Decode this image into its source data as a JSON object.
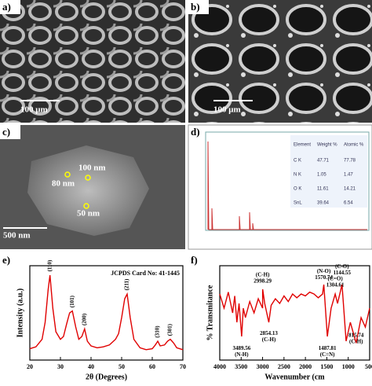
{
  "panels": {
    "a": {
      "label": "a)",
      "scale_bar": "100 μm"
    },
    "b": {
      "label": "b)",
      "scale_bar": "100 μm"
    },
    "c": {
      "label": "c)",
      "scale_bar": "500 nm",
      "annotations": [
        "100 nm",
        "80 nm",
        "50 nm"
      ]
    },
    "d": {
      "label": "d)",
      "table": {
        "header": [
          "Element",
          "Weight %",
          "Atomic %"
        ],
        "rows": [
          [
            "C K",
            "47.71",
            "77.78"
          ],
          [
            "N K",
            "1.05",
            "1.47"
          ],
          [
            "O K",
            "11.61",
            "14.21"
          ],
          [
            "SnL",
            "39.64",
            "6.54"
          ]
        ]
      }
    },
    "e": {
      "label": "e)"
    },
    "f": {
      "label": "f)"
    }
  },
  "chart_data": [
    {
      "type": "line",
      "color": "#e00000",
      "xlabel": "2θ (Degrees)",
      "ylabel": "Intensity (a.u.)",
      "annotation": "JCPDS Card No: 41-1445",
      "x": [
        20,
        22,
        24,
        25,
        26,
        26.6,
        27.5,
        28.5,
        30,
        31,
        32,
        33,
        33.9,
        35,
        36,
        37,
        37.9,
        38.8,
        40,
        42,
        44,
        46,
        48,
        49,
        50,
        51,
        51.8,
        52.8,
        54,
        56,
        58,
        60,
        61,
        61.8,
        62.6,
        64,
        65,
        65.9,
        67,
        68,
        70
      ],
      "values": [
        12,
        14,
        22,
        40,
        75,
        90,
        55,
        30,
        22,
        25,
        38,
        50,
        52,
        35,
        22,
        25,
        33,
        20,
        15,
        13,
        14,
        16,
        22,
        28,
        45,
        65,
        70,
        45,
        22,
        13,
        11,
        12,
        16,
        20,
        15,
        16,
        20,
        22,
        18,
        13,
        11
      ],
      "xlim": [
        20,
        70
      ],
      "xticks": [
        20,
        30,
        40,
        50,
        60,
        70
      ],
      "ylim": [
        0,
        100
      ],
      "peaks": [
        {
          "text": "(110)",
          "x": 26.6,
          "y": 90
        },
        {
          "text": "(101)",
          "x": 33.9,
          "y": 52
        },
        {
          "text": "(200)",
          "x": 37.9,
          "y": 33
        },
        {
          "text": "(211)",
          "x": 51.8,
          "y": 70
        },
        {
          "text": "(310)",
          "x": 61.8,
          "y": 20
        },
        {
          "text": "(301)",
          "x": 65.9,
          "y": 22
        }
      ]
    },
    {
      "type": "line",
      "color": "#e00000",
      "xlabel": "Wavenumber (cm",
      "ylabel": "% Transmitance",
      "x": [
        4000,
        3900,
        3800,
        3700,
        3650,
        3600,
        3550,
        3489.56,
        3450,
        3400,
        3300,
        3200,
        3100,
        3000,
        2998.29,
        2950,
        2854.13,
        2800,
        2700,
        2600,
        2500,
        2400,
        2300,
        2200,
        2100,
        2000,
        1900,
        1800,
        1700,
        1600,
        1570.74,
        1487.81,
        1400,
        1304.61,
        1250,
        1144.55,
        1050,
        950,
        815.74,
        700,
        600,
        500
      ],
      "values": [
        70,
        55,
        72,
        50,
        68,
        40,
        60,
        25,
        55,
        45,
        62,
        50,
        65,
        55,
        75,
        60,
        40,
        58,
        65,
        60,
        68,
        62,
        70,
        66,
        70,
        68,
        72,
        70,
        66,
        70,
        80,
        25,
        55,
        70,
        60,
        80,
        20,
        40,
        18,
        45,
        35,
        55
      ],
      "xlim": [
        4000,
        500
      ],
      "xticks": [
        4000,
        3500,
        3000,
        2500,
        2000,
        1500,
        1000,
        500
      ],
      "ylim": [
        0,
        100
      ],
      "annotations": [
        {
          "lines": [
            "(C-H)",
            "2998.29"
          ],
          "x": 2998.29,
          "y": 90
        },
        {
          "lines": [
            "2854.13",
            "(C-H)"
          ],
          "x": 2854.13,
          "y": 28
        },
        {
          "lines": [
            "3489.56",
            "(N-H)"
          ],
          "x": 3489.56,
          "y": 12
        },
        {
          "lines": [
            "(N-O)",
            "1570.74"
          ],
          "x": 1570.74,
          "y": 94
        },
        {
          "lines": [
            "(C-O)",
            "1144.55"
          ],
          "x": 1144.55,
          "y": 99
        },
        {
          "lines": [
            "(C=O)",
            "1304.61"
          ],
          "x": 1304.61,
          "y": 86
        },
        {
          "lines": [
            "1487.81",
            "(C=N)"
          ],
          "x": 1487.81,
          "y": 12
        },
        {
          "lines": [
            "815.74",
            "(C-H)"
          ],
          "x": 815.74,
          "y": 26
        }
      ]
    }
  ]
}
